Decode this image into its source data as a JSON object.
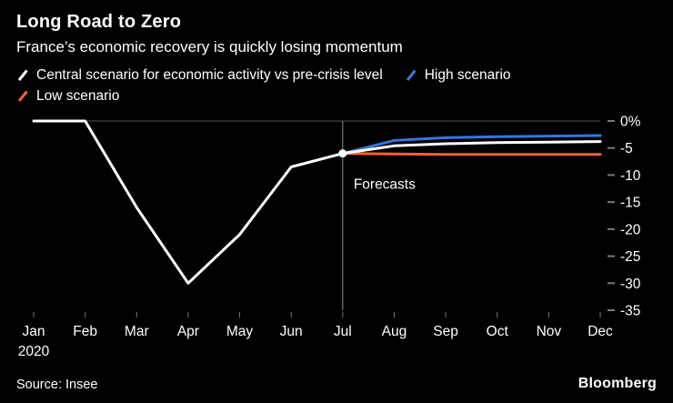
{
  "header": {
    "title": "Long Road to Zero",
    "subtitle": "France’s economic recovery is quickly losing momentum"
  },
  "colors": {
    "background": "#000000",
    "central": "#ffffff",
    "high": "#3575e0",
    "low": "#f4613a",
    "grid": "#4f4f4f",
    "tick": "#7a7a7a",
    "divider": "#8f8f8f"
  },
  "legend": {
    "rows": [
      [
        "central",
        "high"
      ],
      [
        "low"
      ]
    ]
  },
  "chart_data": {
    "type": "line",
    "x": [
      "Jan",
      "Feb",
      "Mar",
      "Apr",
      "May",
      "Jun",
      "Jul",
      "Aug",
      "Sep",
      "Oct",
      "Nov",
      "Dec"
    ],
    "x_year_label": "2020",
    "ylim": [
      -35,
      0
    ],
    "yticks": [
      {
        "value": 0,
        "label": "0%"
      },
      {
        "value": -5,
        "label": "-5"
      },
      {
        "value": -10,
        "label": "-10"
      },
      {
        "value": -15,
        "label": "-15"
      },
      {
        "value": -20,
        "label": "-20"
      },
      {
        "value": -25,
        "label": "-25"
      },
      {
        "value": -30,
        "label": "-30"
      },
      {
        "value": -35,
        "label": "-35"
      }
    ],
    "grid": {
      "zero_line": true
    },
    "legend_position": "top",
    "forecast": {
      "index": 6,
      "label": "Forecasts"
    },
    "marker": {
      "index": 6,
      "value": -6
    },
    "series": [
      {
        "id": "central",
        "name": "Central scenario for economic activity vs pre-crisis level",
        "color": "#ffffff",
        "values": [
          0,
          0,
          -16,
          -30,
          -21,
          -8.5,
          -6,
          -4.6,
          -4.2,
          -4,
          -3.9,
          -3.8
        ]
      },
      {
        "id": "high",
        "name": "High scenario",
        "color": "#3575e0",
        "values": [
          null,
          null,
          null,
          null,
          null,
          null,
          -6,
          -3.6,
          -3.1,
          -2.9,
          -2.8,
          -2.7
        ]
      },
      {
        "id": "low",
        "name": "Low scenario",
        "color": "#f4613a",
        "values": [
          null,
          null,
          null,
          null,
          null,
          null,
          -6,
          -6.1,
          -6.2,
          -6.2,
          -6.2,
          -6.2
        ]
      }
    ]
  },
  "footer": {
    "source": "Source: Insee",
    "brand": "Bloomberg"
  }
}
